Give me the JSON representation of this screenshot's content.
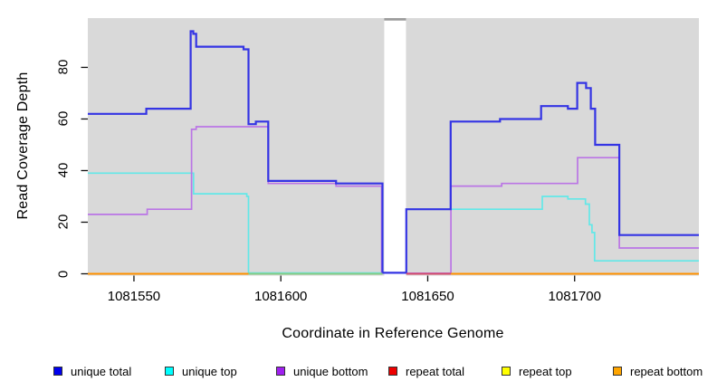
{
  "chart_data": {
    "type": "line",
    "style": "step-coverage-plot",
    "title": "",
    "xlabel": "Coordinate in Reference Genome",
    "ylabel": "Read Coverage Depth",
    "x_range": [
      1081534.3,
      1081742.3
    ],
    "y_range": [
      0,
      99.1
    ],
    "x_ticks": [
      1081550,
      1081600,
      1081650,
      1081700
    ],
    "y_ticks": [
      0,
      20,
      40,
      60,
      80
    ],
    "grid": false,
    "panel_background": "#d9d9d9",
    "mask_region": {
      "x_start": 1081635.2,
      "x_end": 1081642.6
    },
    "series": [
      {
        "name": "unique total",
        "color": "#3434e4",
        "width": 2.2,
        "segments": [
          {
            "steps": [
              [
                1081534.3,
                62
              ],
              [
                1081554.2,
                64
              ],
              [
                1081569.3,
                94
              ],
              [
                1081570.2,
                93
              ],
              [
                1081571.2,
                88
              ],
              [
                1081587.3,
                87
              ],
              [
                1081589.0,
                58
              ],
              [
                1081591.5,
                59
              ],
              [
                1081595.7,
                36
              ],
              [
                1081618.8,
                35
              ],
              [
                1081634.6,
                0.4
              ],
              [
                1081642.7,
                25
              ],
              [
                1081657.8,
                59
              ],
              [
                1081674.6,
                60
              ],
              [
                1081688.6,
                65
              ],
              [
                1081697.7,
                64
              ],
              [
                1081700.9,
                74
              ],
              [
                1081703.9,
                72
              ],
              [
                1081705.5,
                64
              ],
              [
                1081707.0,
                50
              ],
              [
                1081715.2,
                15
              ]
            ],
            "end": 1081742.3
          }
        ]
      },
      {
        "name": "unique top",
        "color": "#62e8e8",
        "width": 1.7,
        "segments": [
          {
            "steps": [
              [
                1081534.3,
                39
              ],
              [
                1081570.3,
                31
              ],
              [
                1081588.4,
                30
              ],
              [
                1081589.0,
                0.3
              ]
            ],
            "end": 1081634.6
          },
          {
            "steps": [
              [
                1081642.7,
                25
              ],
              [
                1081689.0,
                30
              ],
              [
                1081697.7,
                29
              ],
              [
                1081703.7,
                27
              ],
              [
                1081705.0,
                19
              ],
              [
                1081705.9,
                16
              ],
              [
                1081706.8,
                5
              ]
            ],
            "end": 1081742.3
          }
        ]
      },
      {
        "name": "unique bottom",
        "color": "#ba75e5",
        "width": 1.7,
        "segments": [
          {
            "steps": [
              [
                1081534.3,
                23
              ],
              [
                1081554.5,
                25
              ],
              [
                1081569.6,
                56
              ],
              [
                1081571.2,
                57
              ],
              [
                1081595.7,
                35
              ],
              [
                1081618.8,
                34
              ],
              [
                1081634.3,
                0.2
              ]
            ],
            "end": 1081634.3
          },
          {
            "steps": [
              [
                1081642.7,
                0.2
              ],
              [
                1081657.9,
                34
              ],
              [
                1081675.2,
                35
              ],
              [
                1081701.0,
                45
              ],
              [
                1081715.2,
                10
              ]
            ],
            "end": 1081742.3
          }
        ]
      },
      {
        "name": "repeat total",
        "color": "#ee0000",
        "constant": 0
      },
      {
        "name": "repeat top",
        "color": "#ffff00",
        "constant": 0
      },
      {
        "name": "repeat bottom",
        "color": "#ffa500",
        "constant": 0
      }
    ],
    "zero_line_segments": [
      {
        "x_start": 1081534.3,
        "x_end": 1081589.0,
        "color": "#ff9100"
      },
      {
        "x_start": 1081589.0,
        "x_end": 1081634.6,
        "color": "#85cc85"
      },
      {
        "x_start": 1081642.7,
        "x_end": 1081657.9,
        "color": "#d44e6a"
      },
      {
        "x_start": 1081657.9,
        "x_end": 1081742.3,
        "color": "#ff9100"
      }
    ],
    "legend": {
      "position": "bottom",
      "items": [
        {
          "label": "unique total",
          "color": "#0000ee"
        },
        {
          "label": "unique top",
          "color": "#00ffff"
        },
        {
          "label": "unique bottom",
          "color": "#a020f0"
        },
        {
          "label": "repeat total",
          "color": "#ee0000"
        },
        {
          "label": "repeat top",
          "color": "#ffff00"
        },
        {
          "label": "repeat bottom",
          "color": "#ffa500"
        }
      ]
    }
  }
}
